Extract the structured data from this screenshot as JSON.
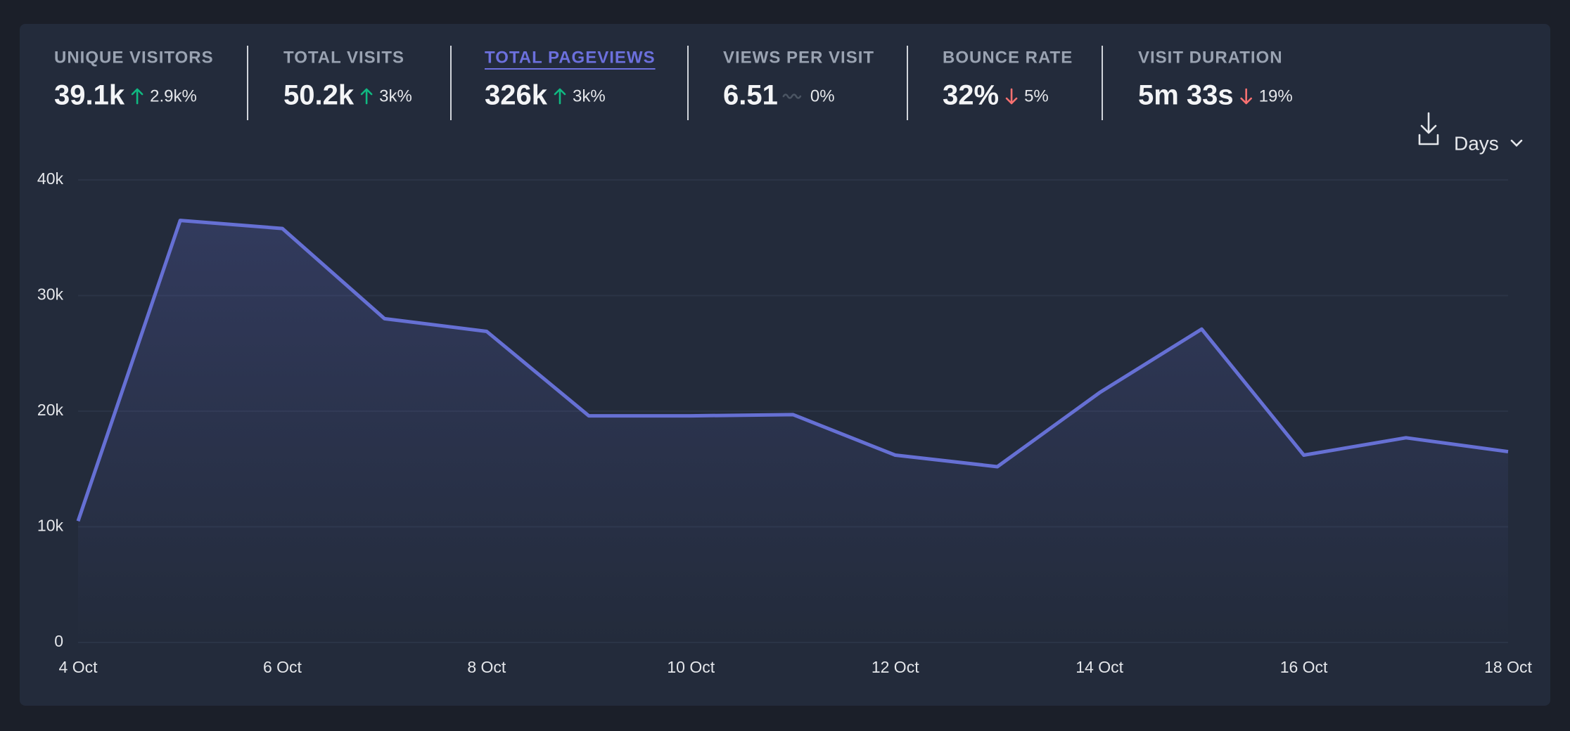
{
  "stats": [
    {
      "label": "UNIQUE VISITORS",
      "value": "39.1k",
      "change": "2.9k%",
      "trend": "up"
    },
    {
      "label": "TOTAL VISITS",
      "value": "50.2k",
      "change": "3k%",
      "trend": "up"
    },
    {
      "label": "TOTAL PAGEVIEWS",
      "value": "326k",
      "change": "3k%",
      "trend": "up",
      "active": true
    },
    {
      "label": "VIEWS PER VISIT",
      "value": "6.51",
      "change": "0%",
      "trend": "flat"
    },
    {
      "label": "BOUNCE RATE",
      "value": "32%",
      "change": "5%",
      "trend": "down"
    },
    {
      "label": "VISIT DURATION",
      "value": "5m 33s",
      "change": "19%",
      "trend": "down"
    }
  ],
  "interval": "Days",
  "chart_data": {
    "type": "line",
    "categories": [
      "4 Oct",
      null,
      "6 Oct",
      null,
      "8 Oct",
      null,
      "10 Oct",
      null,
      "12 Oct",
      null,
      "14 Oct",
      null,
      "16 Oct",
      null,
      "18 Oct"
    ],
    "series": [
      {
        "name": "Pageviews",
        "color": "#6670d4",
        "values": [
          10500,
          36500,
          35800,
          28000,
          26900,
          19600,
          19600,
          19700,
          16200,
          15200,
          21600,
          27100,
          16200,
          17700,
          16500
        ]
      }
    ],
    "ylim": [
      0,
      40000
    ],
    "yticks": [
      0,
      {
        "value": 10000,
        "label": "10k"
      },
      {
        "value": 20000,
        "label": "20k"
      },
      {
        "value": 30000,
        "label": "30k"
      },
      {
        "value": 40000,
        "label": "40k"
      }
    ],
    "grid": true
  }
}
